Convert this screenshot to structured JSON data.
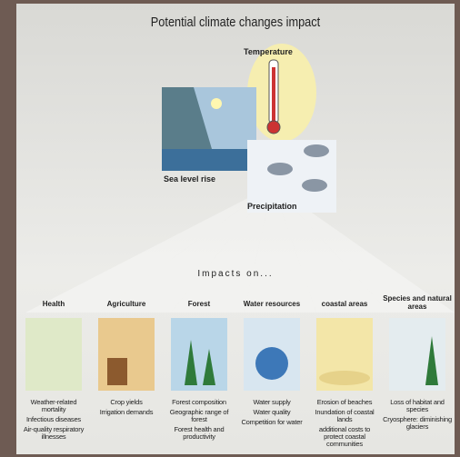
{
  "header": {
    "title": "Potential climate changes impact"
  },
  "drivers": {
    "temperature": "Temperature",
    "sea_level": "Sea level rise",
    "precipitation": "Precipitation"
  },
  "impacts_heading": "Impacts on...",
  "columns": [
    {
      "title": "Health",
      "items": [
        "Weather-related mortality",
        "Infectious diseases",
        "Air-quality respiratory illnesses"
      ]
    },
    {
      "title": "Agriculture",
      "items": [
        "Crop yields",
        "Irrigation demands"
      ]
    },
    {
      "title": "Forest",
      "items": [
        "Forest composition",
        "Geographic range of forest",
        "Forest health and productivity"
      ]
    },
    {
      "title": "Water resources",
      "items": [
        "Water supply",
        "Water quality",
        "Competition for water"
      ]
    },
    {
      "title": "coastal areas",
      "items": [
        "Erosion of beaches",
        "Inundation of coastal lands",
        "additional costs to protect coastal communities"
      ]
    },
    {
      "title": "Species and natural areas",
      "items": [
        "Loss of habitat and species",
        "Cryosphere: diminishing glaciers"
      ]
    }
  ]
}
